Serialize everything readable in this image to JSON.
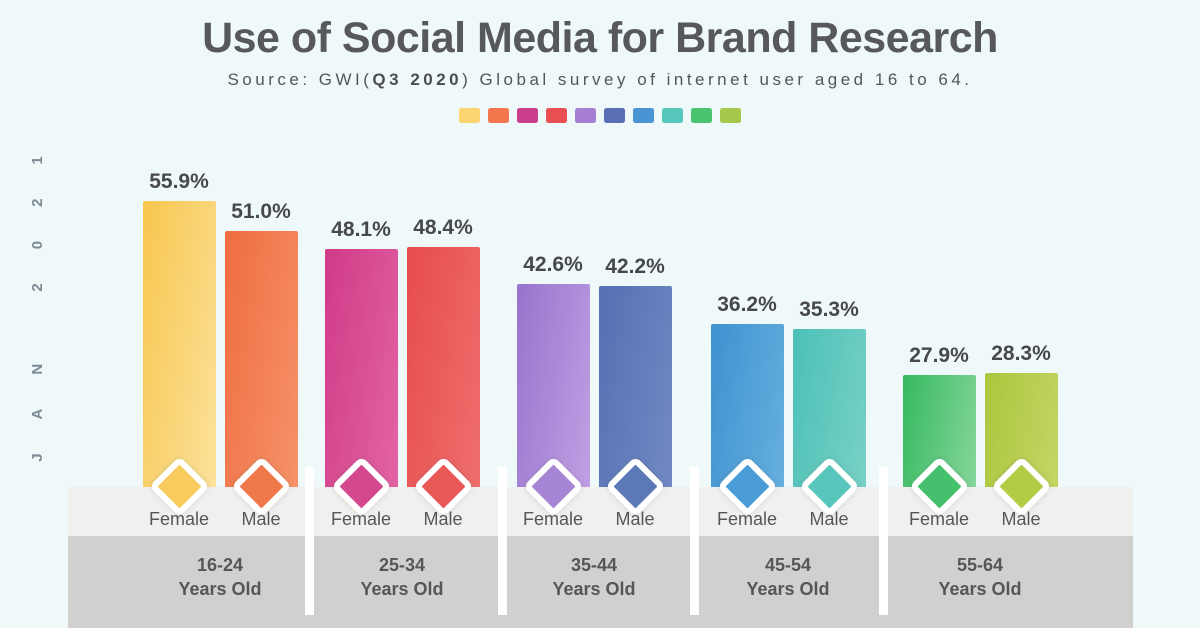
{
  "header": {
    "title": "Use of Social Media for Brand Research",
    "source_prefix": "Source: GWI(",
    "source_bold": "Q3 2020",
    "source_suffix": ") Global survey of internet user aged 16 to 64."
  },
  "side_label": "JAN 2021",
  "legend_swatches": [
    {
      "name": "yellow",
      "color": "#fbd36f"
    },
    {
      "name": "orange",
      "color": "#f3764d"
    },
    {
      "name": "magenta",
      "color": "#cc3f8d"
    },
    {
      "name": "red",
      "color": "#e94f52"
    },
    {
      "name": "purple",
      "color": "#a67fd5"
    },
    {
      "name": "indigo",
      "color": "#5a6fb5"
    },
    {
      "name": "blue",
      "color": "#4b94d4"
    },
    {
      "name": "teal",
      "color": "#57c6bb"
    },
    {
      "name": "green",
      "color": "#4bc470"
    },
    {
      "name": "yellow-green",
      "color": "#a5c84b"
    }
  ],
  "chart_data": {
    "type": "bar",
    "title": "Use of Social Media for Brand Research",
    "subtitle": "Source: GWI(Q3 2020) Global survey of internet user aged 16 to 64.",
    "unit": "%",
    "categories": [
      "16-24 Years Old",
      "25-34 Years Old",
      "35-44 Years Old",
      "45-54 Years Old",
      "55-64 Years Old"
    ],
    "series": [
      {
        "name": "Female",
        "values": [
          55.9,
          48.1,
          42.6,
          36.2,
          27.9
        ]
      },
      {
        "name": "Male",
        "values": [
          51.0,
          48.4,
          42.2,
          35.3,
          28.3
        ]
      }
    ],
    "legend_position": "top",
    "grid": false,
    "value_labels_shown": true,
    "period_label": "JAN 2021"
  },
  "groups": [
    {
      "age_range": "16-24",
      "age_suffix": "Years Old",
      "bars": [
        {
          "gender": "Female",
          "value": 55.9,
          "display": "55.9%",
          "color_start": "#f7c64e",
          "color_end": "#fce29b",
          "diamond_color": "#f8cc5c"
        },
        {
          "gender": "Male",
          "value": 51.0,
          "display": "51.0%",
          "color_start": "#ef6d40",
          "color_end": "#f69269",
          "diamond_color": "#f0794c"
        }
      ]
    },
    {
      "age_range": "25-34",
      "age_suffix": "Years Old",
      "bars": [
        {
          "gender": "Female",
          "value": 48.1,
          "display": "48.1%",
          "color_start": "#d13a87",
          "color_end": "#e264a4",
          "diamond_color": "#d44890"
        },
        {
          "gender": "Male",
          "value": 48.4,
          "display": "48.4%",
          "color_start": "#e74b4e",
          "color_end": "#ef6f6c",
          "diamond_color": "#e95957"
        }
      ]
    },
    {
      "age_range": "35-44",
      "age_suffix": "Years Old",
      "bars": [
        {
          "gender": "Female",
          "value": 42.6,
          "display": "42.6%",
          "color_start": "#9973cc",
          "color_end": "#c0a0e4",
          "diamond_color": "#a685d4"
        },
        {
          "gender": "Male",
          "value": 42.2,
          "display": "42.2%",
          "color_start": "#5470b3",
          "color_end": "#7289c3",
          "diamond_color": "#5b78b9"
        }
      ]
    },
    {
      "age_range": "45-54",
      "age_suffix": "Years Old",
      "bars": [
        {
          "gender": "Female",
          "value": 36.2,
          "display": "36.2%",
          "color_start": "#3e92d0",
          "color_end": "#66afdf",
          "diamond_color": "#4a9cd7"
        },
        {
          "gender": "Male",
          "value": 35.3,
          "display": "35.3%",
          "color_start": "#4cc0b7",
          "color_end": "#78d1c6",
          "diamond_color": "#58c6bc"
        }
      ]
    },
    {
      "age_range": "55-64",
      "age_suffix": "Years Old",
      "bars": [
        {
          "gender": "Female",
          "value": 27.9,
          "display": "27.9%",
          "color_start": "#36b95f",
          "color_end": "#85d69a",
          "diamond_color": "#45c06d"
        },
        {
          "gender": "Male",
          "value": 28.3,
          "display": "28.3%",
          "color_start": "#abc73d",
          "color_end": "#c4d565",
          "diamond_color": "#b1cc45"
        }
      ]
    }
  ]
}
